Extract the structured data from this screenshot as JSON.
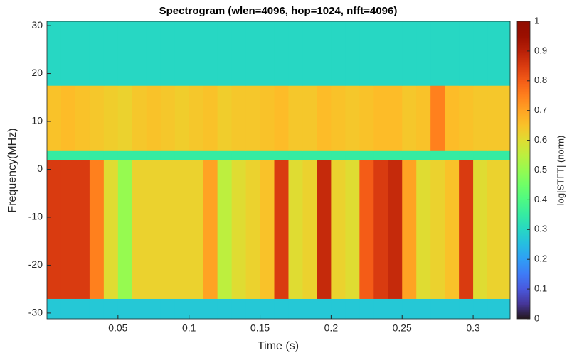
{
  "chart_data": {
    "type": "heatmap",
    "title": "Spectrogram (wlen=4096, hop=1024, nfft=4096)",
    "x_label": "Time (s)",
    "y_label": "Frequency(MHz)",
    "colorbar_label": "log|STFT| (norm)",
    "xlim": [
      0,
      0.326
    ],
    "ylim": [
      -31.2,
      30.9
    ],
    "xticks": [
      0.05,
      0.1,
      0.15,
      0.2,
      0.25,
      0.3
    ],
    "yticks": [
      -30,
      -20,
      -10,
      0,
      10,
      20,
      30
    ],
    "clim": [
      0,
      1
    ],
    "cticks": [
      0,
      0.1,
      0.2,
      0.3,
      0.4,
      0.5,
      0.6,
      0.7,
      0.8,
      0.9,
      1
    ],
    "colormap": "turbo",
    "xbins": [
      0,
      0.01,
      0.02,
      0.03,
      0.04,
      0.05,
      0.06,
      0.07,
      0.08,
      0.09,
      0.1,
      0.11,
      0.12,
      0.13,
      0.14,
      0.15,
      0.16,
      0.17,
      0.18,
      0.19,
      0.2,
      0.21,
      0.22,
      0.23,
      0.24,
      0.25,
      0.26,
      0.27,
      0.28,
      0.29,
      0.3,
      0.31,
      0.32,
      0.326
    ],
    "ybins": [
      -31.2,
      -27,
      2,
      4,
      17.5,
      30.9
    ],
    "z": [
      [
        0.27,
        0.27,
        0.27,
        0.27,
        0.27,
        0.27,
        0.27,
        0.27,
        0.27,
        0.27,
        0.27,
        0.27,
        0.27,
        0.27,
        0.27,
        0.27,
        0.27,
        0.27,
        0.27,
        0.27,
        0.27,
        0.27,
        0.27,
        0.27,
        0.27,
        0.27,
        0.27,
        0.27,
        0.27,
        0.27,
        0.27,
        0.27,
        0.27
      ],
      [
        0.85,
        0.85,
        0.85,
        0.75,
        0.6,
        0.5,
        0.62,
        0.62,
        0.62,
        0.62,
        0.62,
        0.7,
        0.55,
        0.6,
        0.62,
        0.65,
        0.85,
        0.6,
        0.62,
        0.88,
        0.62,
        0.6,
        0.8,
        0.85,
        0.88,
        0.7,
        0.6,
        0.62,
        0.65,
        0.85,
        0.6,
        0.62,
        0.62
      ],
      [
        0.35,
        0.35,
        0.35,
        0.35,
        0.35,
        0.35,
        0.35,
        0.35,
        0.35,
        0.35,
        0.35,
        0.35,
        0.35,
        0.35,
        0.35,
        0.35,
        0.35,
        0.35,
        0.35,
        0.35,
        0.35,
        0.35,
        0.35,
        0.35,
        0.35,
        0.35,
        0.35,
        0.35,
        0.35,
        0.35,
        0.35,
        0.35,
        0.35
      ],
      [
        0.65,
        0.66,
        0.65,
        0.64,
        0.63,
        0.62,
        0.64,
        0.65,
        0.64,
        0.63,
        0.64,
        0.65,
        0.63,
        0.64,
        0.64,
        0.65,
        0.66,
        0.64,
        0.64,
        0.66,
        0.65,
        0.64,
        0.65,
        0.66,
        0.66,
        0.64,
        0.65,
        0.75,
        0.66,
        0.65,
        0.64,
        0.64,
        0.64
      ],
      [
        0.3,
        0.3,
        0.3,
        0.3,
        0.3,
        0.3,
        0.3,
        0.3,
        0.3,
        0.3,
        0.3,
        0.3,
        0.3,
        0.3,
        0.3,
        0.3,
        0.3,
        0.3,
        0.3,
        0.3,
        0.3,
        0.3,
        0.3,
        0.3,
        0.3,
        0.3,
        0.3,
        0.3,
        0.3,
        0.3,
        0.3,
        0.3,
        0.3
      ]
    ]
  }
}
